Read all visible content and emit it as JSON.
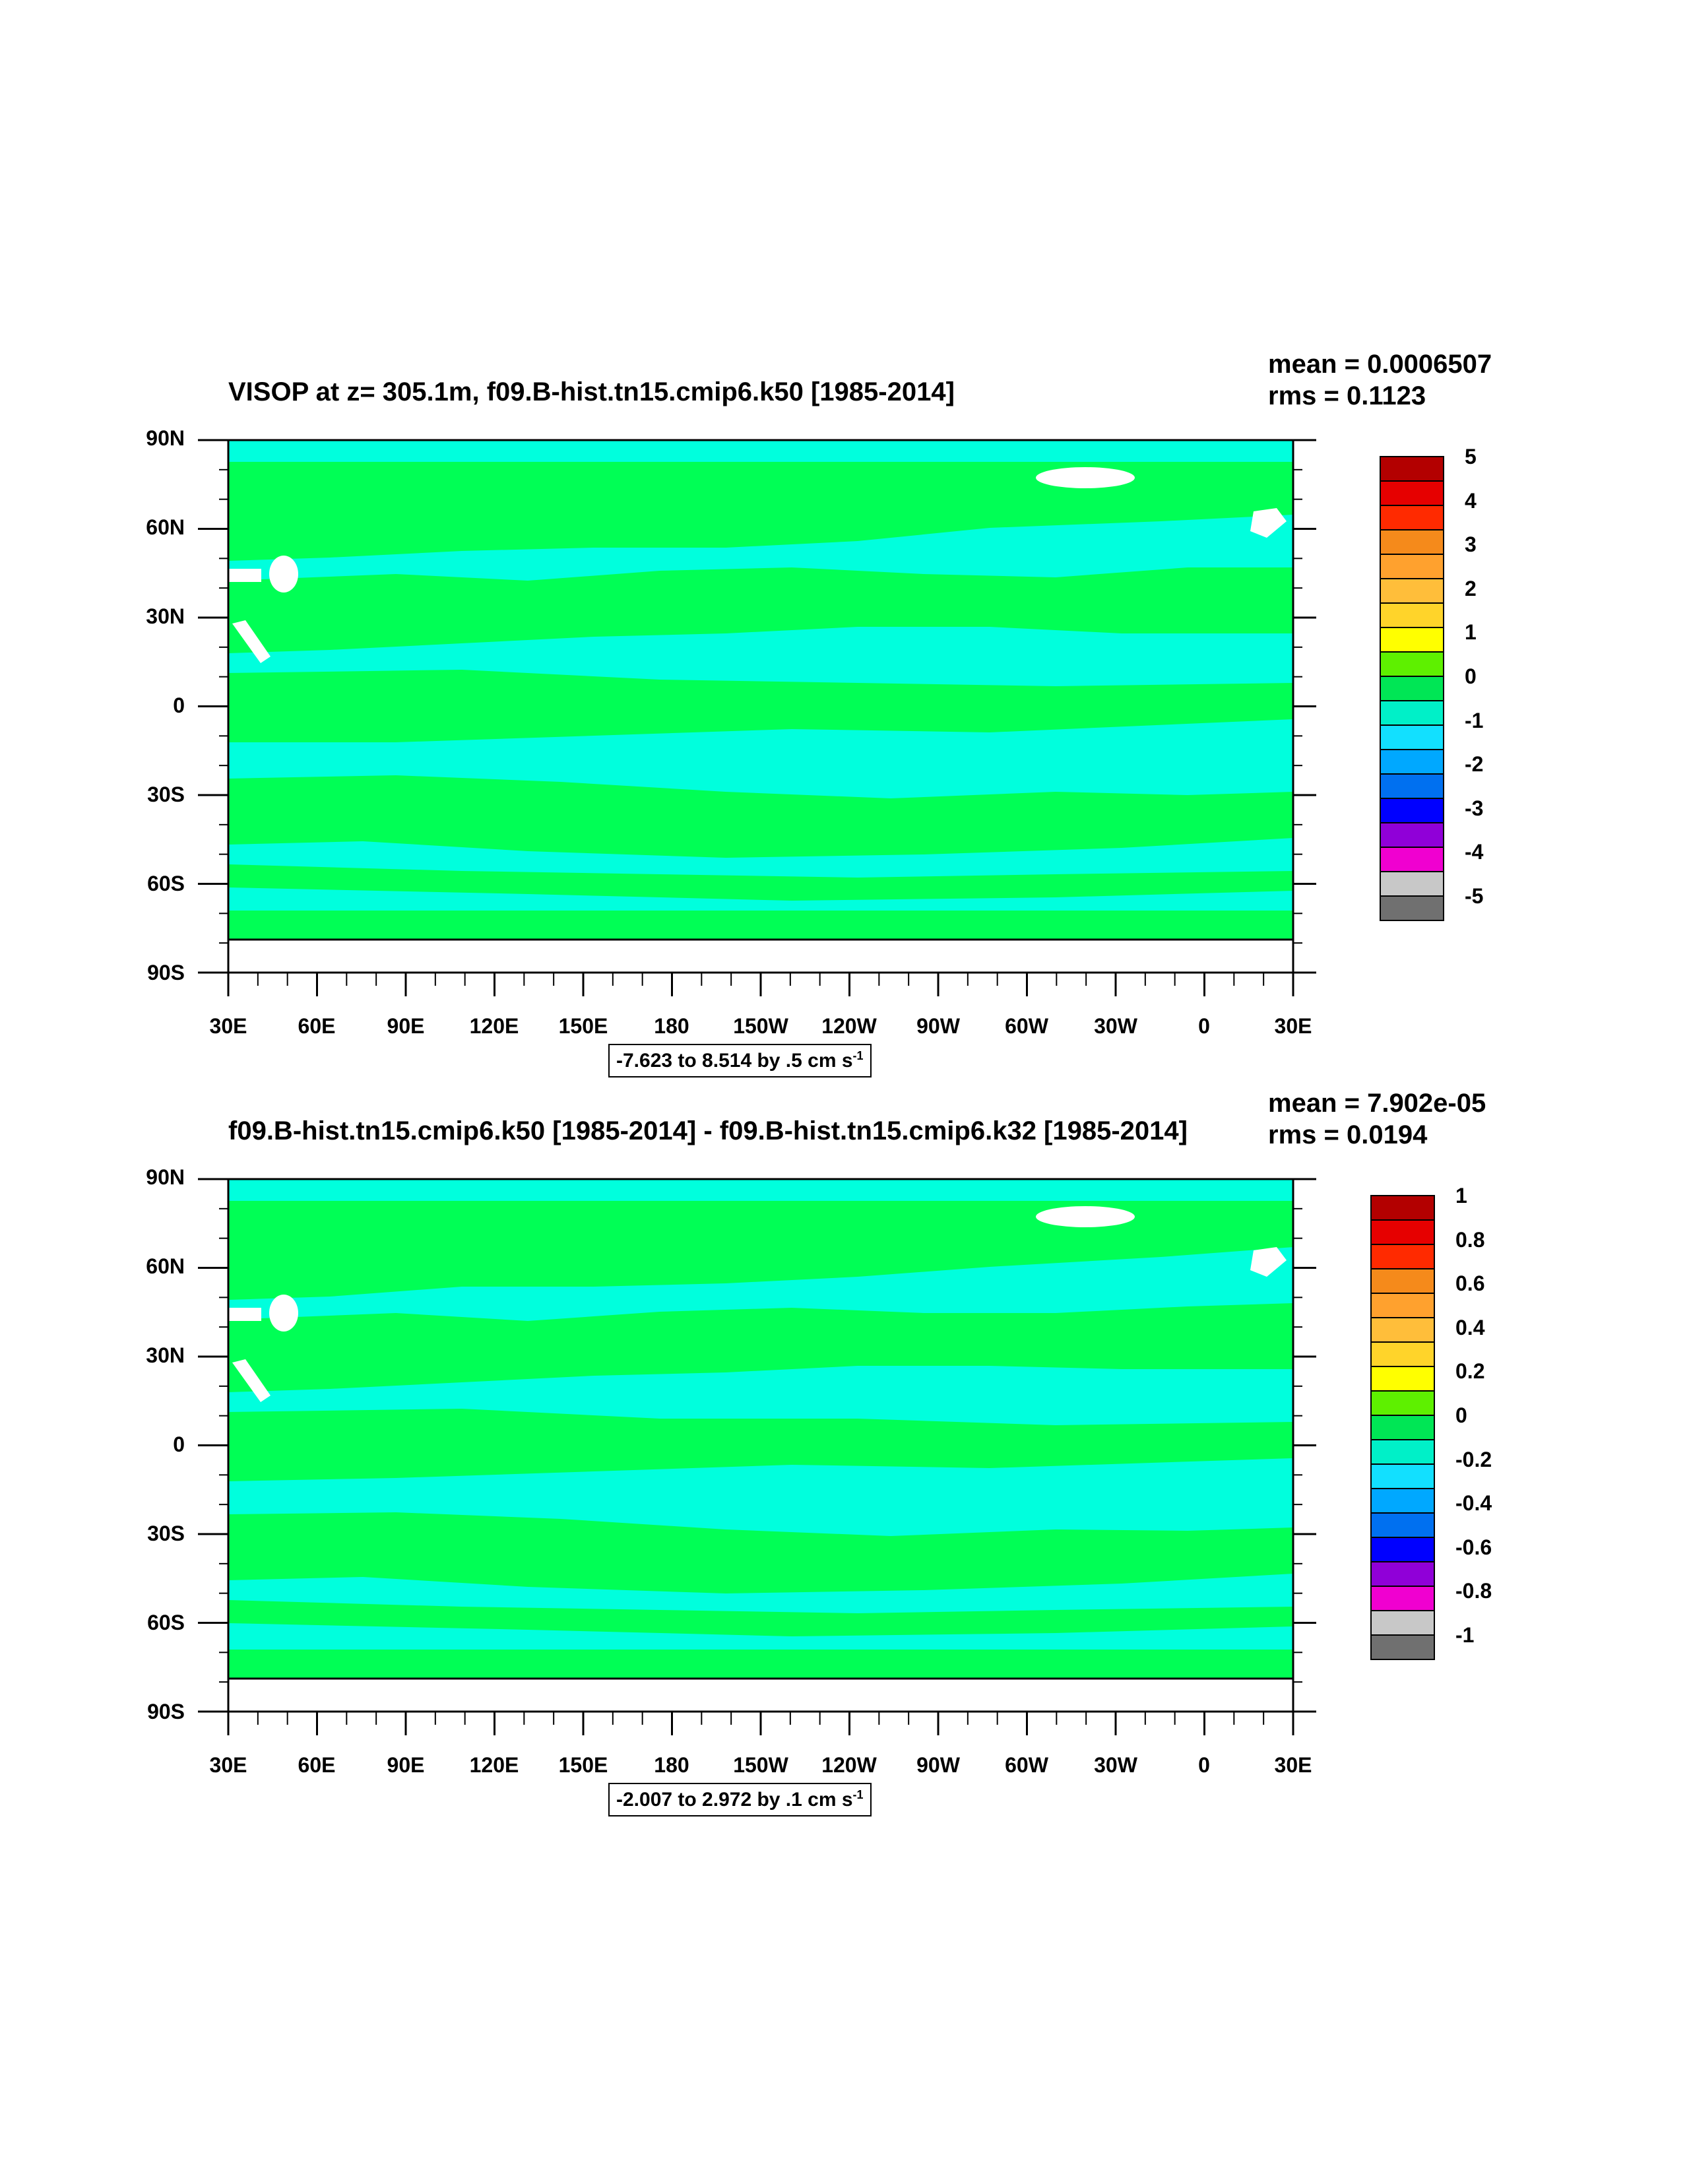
{
  "panels": [
    {
      "id": "top",
      "title": "VISOP at z= 305.1m, f09.B-hist.tn15.cmip6.k50 [1985-2014]",
      "mean": "mean = 0.0006507",
      "rms": "rms = 0.1123",
      "range_text": "-7.623 to 8.514 by .5 cm s",
      "range_sup": "-1",
      "colorbar_labels": [
        "5",
        "4",
        "3",
        "2",
        "1",
        "0",
        "-1",
        "-2",
        "-3",
        "-4",
        "-5"
      ]
    },
    {
      "id": "bottom",
      "title": "f09.B-hist.tn15.cmip6.k50 [1985-2014] - f09.B-hist.tn15.cmip6.k32 [1985-2014]",
      "mean": "mean = 7.902e-05",
      "rms": "rms = 0.0194",
      "range_text": "-2.007 to 2.972 by .1 cm s",
      "range_sup": "-1",
      "colorbar_labels": [
        "1",
        "0.8",
        "0.6",
        "0.4",
        "0.2",
        "0",
        "-0.2",
        "-0.4",
        "-0.6",
        "-0.8",
        "-1"
      ]
    }
  ],
  "lat_labels": [
    "90N",
    "60N",
    "30N",
    "0",
    "30S",
    "60S",
    "90S"
  ],
  "lon_labels": [
    "30E",
    "60E",
    "90E",
    "120E",
    "150E",
    "180",
    "150W",
    "120W",
    "90W",
    "60W",
    "30W",
    "0",
    "30E"
  ],
  "colorbar_colors": [
    "#b30000",
    "#e60000",
    "#ff2a00",
    "#f58a1b",
    "#ffa12e",
    "#ffbe3a",
    "#ffd42a",
    "#ffff00",
    "#5ef000",
    "#00e655",
    "#00f0c8",
    "#12e0ff",
    "#00a8ff",
    "#0070f0",
    "#0000ff",
    "#9000d8",
    "#f000d0",
    "#c8c8c8",
    "#707070"
  ],
  "field_colors": {
    "main": "#00ff55",
    "secondary": "#00ffdd",
    "missing": "#ffffff"
  }
}
